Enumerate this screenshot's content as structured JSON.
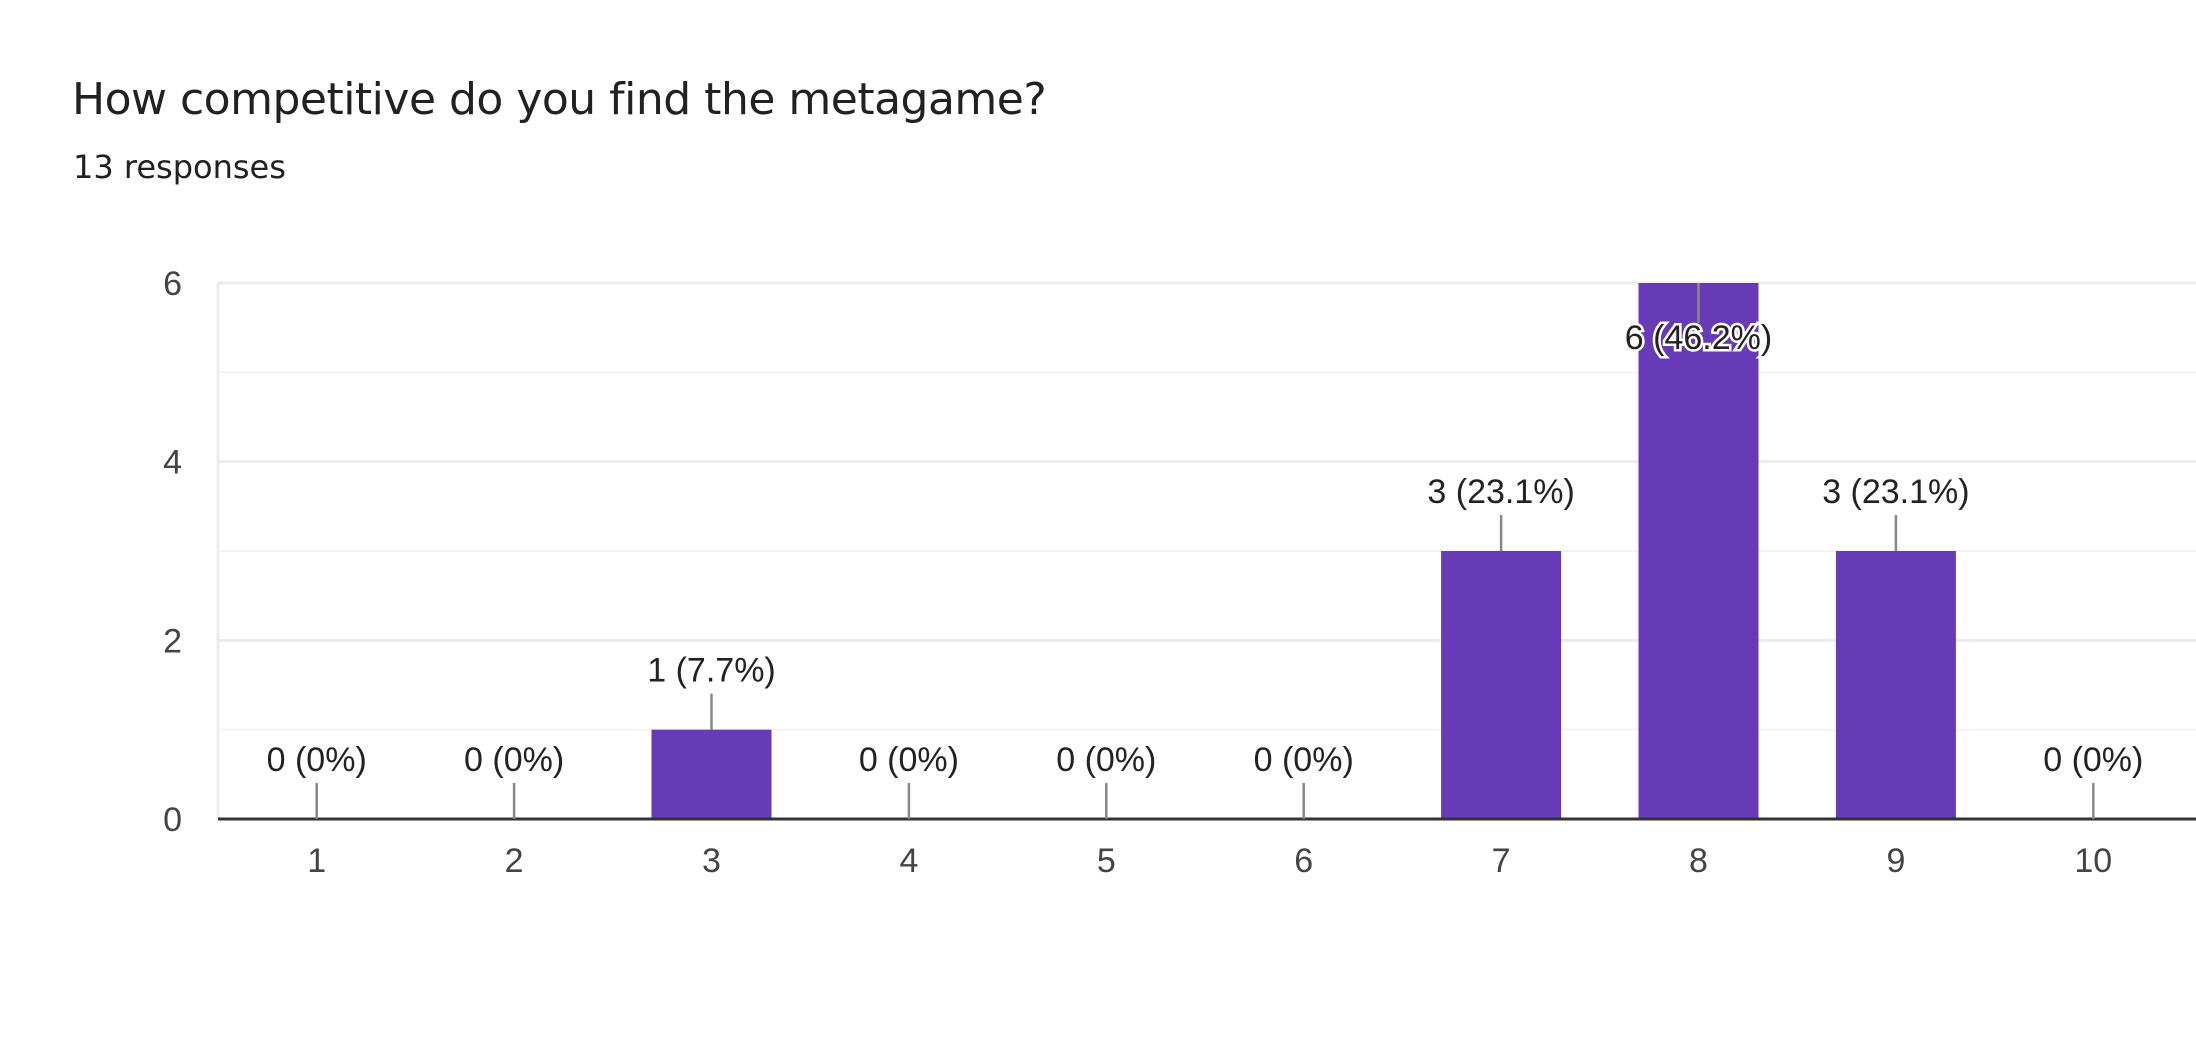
{
  "header": {
    "title": "How competitive do you find the metagame?",
    "responses": "13 responses"
  },
  "chart_data": {
    "type": "bar",
    "categories": [
      "1",
      "2",
      "3",
      "4",
      "5",
      "6",
      "7",
      "8",
      "9",
      "10"
    ],
    "values": [
      0,
      0,
      1,
      0,
      0,
      0,
      3,
      6,
      3,
      0
    ],
    "data_labels": [
      "0 (0%)",
      "0 (0%)",
      "1 (7.7%)",
      "0 (0%)",
      "0 (0%)",
      "0 (0%)",
      "3 (23.1%)",
      "6 (46.2%)",
      "3 (23.1%)",
      "0 (0%)"
    ],
    "yticks": [
      0,
      2,
      4,
      6
    ],
    "ylim": [
      0,
      6
    ],
    "grid": true,
    "colors": {
      "bar": "#673ab7",
      "grid": "#ececec",
      "axis": "#333333",
      "leader": "#888888"
    }
  }
}
